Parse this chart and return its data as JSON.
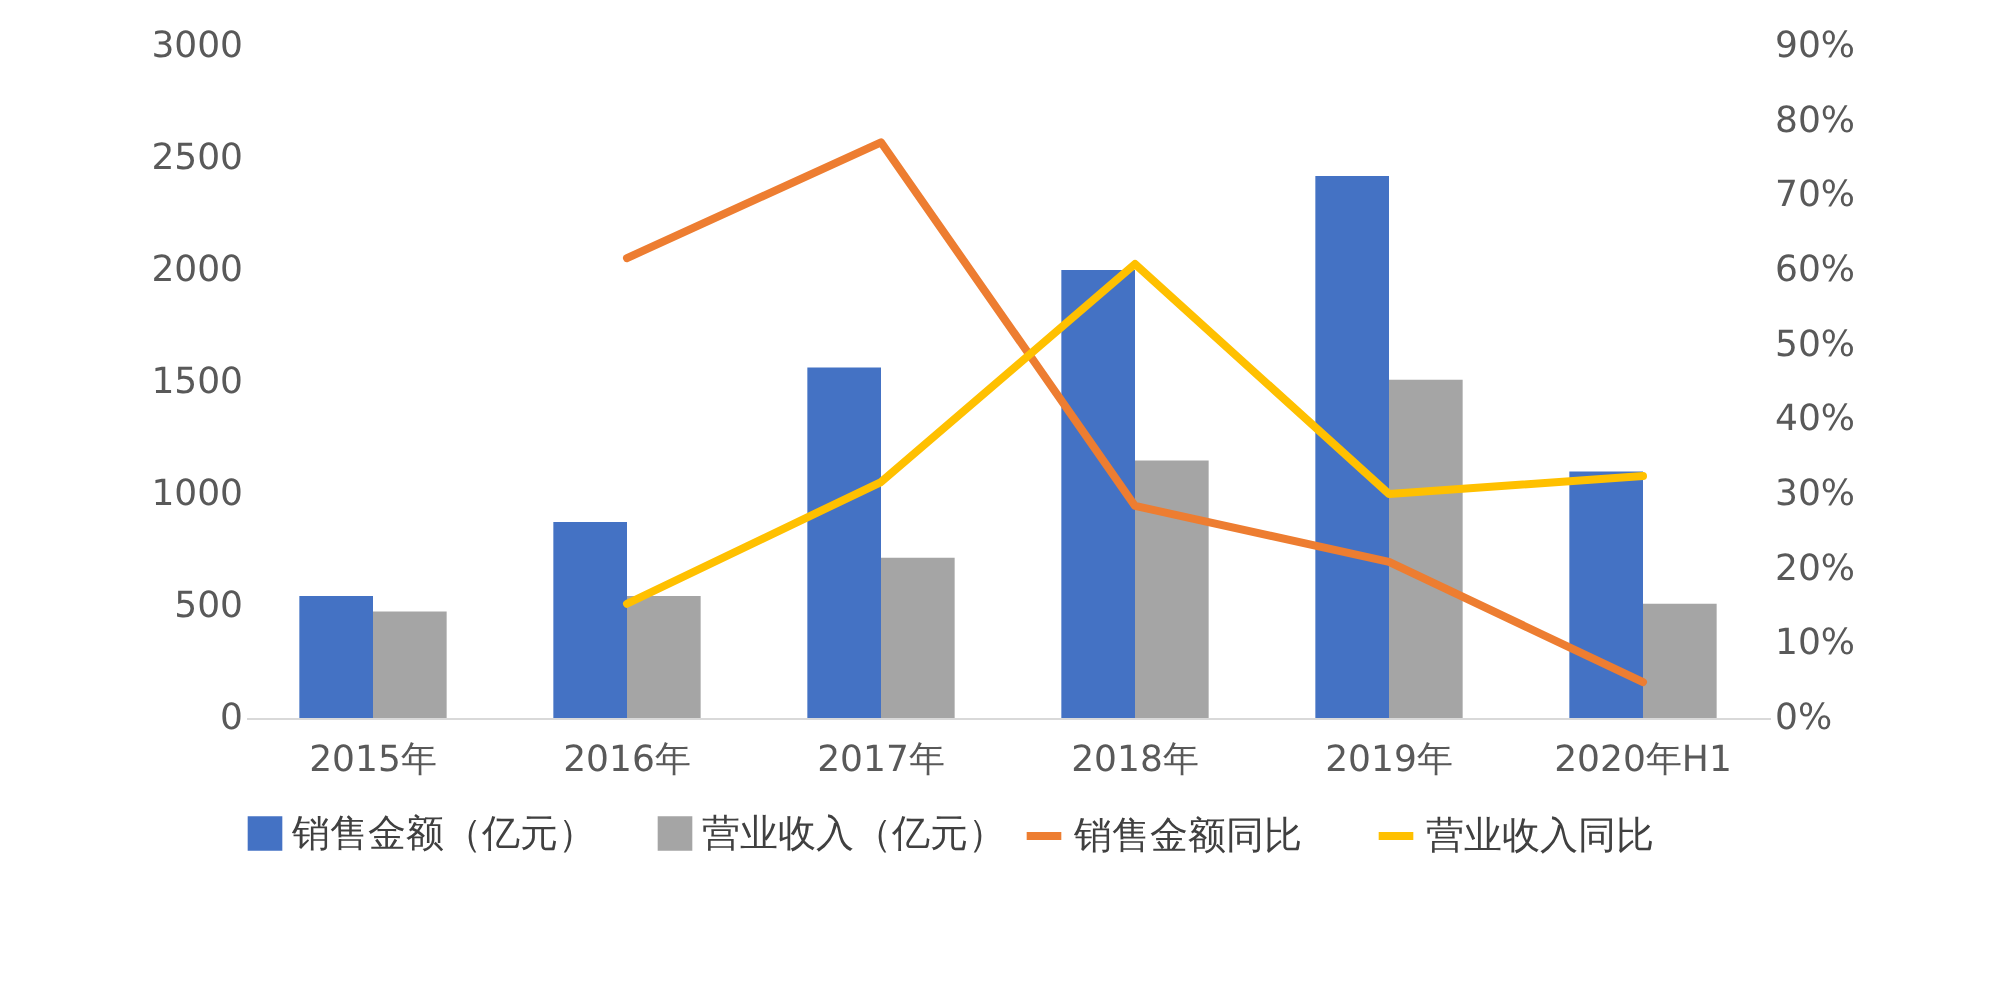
{
  "chart_data": {
    "type": "bar",
    "categories": [
      "2015年",
      "2016年",
      "2017年",
      "2018年",
      "2019年",
      "2020年H1"
    ],
    "series": [
      {
        "name": "销售金额（亿元）",
        "color": "#4472c4",
        "values": [
          545,
          875,
          1565,
          2000,
          2420,
          1100
        ]
      },
      {
        "name": "营业收入（亿元）",
        "color": "#a5a5a5",
        "values": [
          475,
          545,
          715,
          1150,
          1510,
          510
        ]
      },
      {
        "name": "销售金额同比",
        "color": "#ed7d31",
        "type": "line",
        "axis": "y2",
        "values": [
          null,
          61.6,
          77.1,
          28.4,
          20.9,
          4.8
        ]
      },
      {
        "name": "营业收入同比",
        "color": "#ffc000",
        "type": "line",
        "axis": "y2",
        "values": [
          null,
          15.3,
          31.6,
          60.8,
          30,
          32.4
        ]
      }
    ],
    "ylim": [
      0,
      3000
    ],
    "yticks": [
      0,
      500,
      1000,
      1500,
      2000,
      2500,
      3000
    ],
    "y2lim": [
      0,
      90
    ],
    "y2ticks": [
      {
        "value": 0,
        "label": "0%"
      },
      {
        "value": 10,
        "label": "10%"
      },
      {
        "value": 20,
        "label": "20%"
      },
      {
        "value": 30,
        "label": "30%"
      },
      {
        "value": 40,
        "label": "40%"
      },
      {
        "value": 50,
        "label": "50%"
      },
      {
        "value": 60,
        "label": "60%"
      },
      {
        "value": 70,
        "label": "70%"
      },
      {
        "value": 80,
        "label": "80%"
      },
      {
        "value": 90,
        "label": "90%"
      }
    ],
    "legend": "bottom"
  }
}
